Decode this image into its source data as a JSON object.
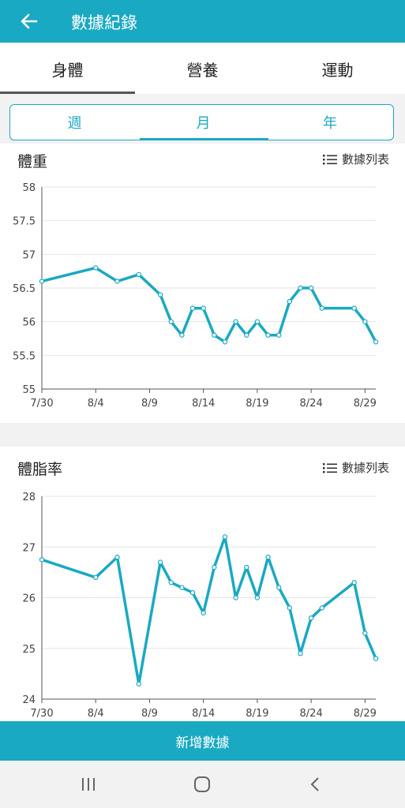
{
  "header": {
    "title": "數據紀錄",
    "back_icon": "arrow-left-icon"
  },
  "tabs": [
    {
      "label": "身體"
    },
    {
      "label": "營養"
    },
    {
      "label": "運動"
    }
  ],
  "period": [
    {
      "label": "週"
    },
    {
      "label": "月"
    },
    {
      "label": "年"
    }
  ],
  "list_label": "數據列表",
  "add_button": "新增數據",
  "accent": "#1aa9c2",
  "chart_data": [
    {
      "type": "line",
      "title": "體重",
      "ylim": [
        55,
        58
      ],
      "yticks": [
        "58",
        "57.5",
        "57",
        "56.5",
        "56",
        "55.5",
        "55"
      ],
      "xticks": [
        "7/30",
        "8/4",
        "8/9",
        "8/14",
        "8/19",
        "8/24",
        "8/29"
      ],
      "grid": true,
      "x": [
        "7/30",
        "8/4",
        "8/6",
        "8/8",
        "8/10",
        "8/11",
        "8/12",
        "8/13",
        "8/14",
        "8/15",
        "8/16",
        "8/17",
        "8/18",
        "8/19",
        "8/20",
        "8/21",
        "8/22",
        "8/23",
        "8/24",
        "8/25",
        "8/28",
        "8/29",
        "8/30"
      ],
      "values": [
        56.6,
        56.8,
        56.6,
        56.7,
        56.4,
        56.0,
        55.8,
        56.2,
        56.2,
        55.8,
        55.7,
        56.0,
        55.8,
        56.0,
        55.8,
        55.8,
        56.3,
        56.5,
        56.5,
        56.2,
        56.2,
        56.0,
        55.7
      ]
    },
    {
      "type": "line",
      "title": "體脂率",
      "ylim": [
        24,
        28
      ],
      "yticks": [
        "28",
        "27",
        "26",
        "25",
        "24"
      ],
      "xticks": [
        "7/30",
        "8/4",
        "8/9",
        "8/14",
        "8/19",
        "8/24",
        "8/29"
      ],
      "grid": true,
      "x": [
        "7/30",
        "8/4",
        "8/6",
        "8/8",
        "8/10",
        "8/11",
        "8/12",
        "8/13",
        "8/14",
        "8/15",
        "8/16",
        "8/17",
        "8/18",
        "8/19",
        "8/20",
        "8/21",
        "8/22",
        "8/23",
        "8/24",
        "8/25",
        "8/28",
        "8/29",
        "8/30"
      ],
      "values": [
        26.75,
        26.4,
        26.8,
        24.3,
        26.7,
        26.3,
        26.2,
        26.1,
        25.7,
        26.6,
        27.2,
        26.0,
        26.6,
        26.0,
        26.8,
        26.2,
        25.8,
        24.9,
        25.6,
        25.8,
        26.3,
        25.3,
        24.8
      ]
    }
  ]
}
